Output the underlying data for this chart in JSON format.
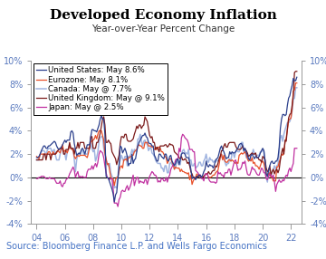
{
  "title": "Developed Economy Inflation",
  "subtitle": "Year-over-Year Percent Change",
  "source": "Source: Bloomberg Finance L.P. and Wells Fargo Economics",
  "ylim": [
    -4,
    10
  ],
  "yticks": [
    -4,
    -2,
    0,
    2,
    4,
    6,
    8,
    10
  ],
  "xticks": [
    2004,
    2006,
    2008,
    2010,
    2012,
    2014,
    2016,
    2018,
    2020,
    2022
  ],
  "xlim": [
    2003.6,
    2022.75
  ],
  "series": {
    "United States": {
      "color": "#2b3f8c",
      "label": "United States: May 8.6%",
      "lw": 0.9,
      "zorder": 5
    },
    "Eurozone": {
      "color": "#e8502a",
      "label": "Eurozone: May 8.1%",
      "lw": 0.9,
      "zorder": 4
    },
    "Canada": {
      "color": "#a0b4e0",
      "label": "Canada: May @ 7.7%",
      "lw": 1.1,
      "zorder": 3
    },
    "United Kingdom": {
      "color": "#7b1a1a",
      "label": "United Kingdom: May @ 9.1%",
      "lw": 0.9,
      "zorder": 4
    },
    "Japan": {
      "color": "#c030a0",
      "label": "Japan: May @ 2.5%",
      "lw": 0.9,
      "zorder": 4
    }
  },
  "background_color": "#ffffff",
  "title_fontsize": 11,
  "subtitle_fontsize": 7.5,
  "source_fontsize": 7.0,
  "legend_fontsize": 6.2,
  "tick_fontsize": 7.0,
  "tick_color": "#5a7abf",
  "title_color": "#000000",
  "source_color": "#4472c4"
}
